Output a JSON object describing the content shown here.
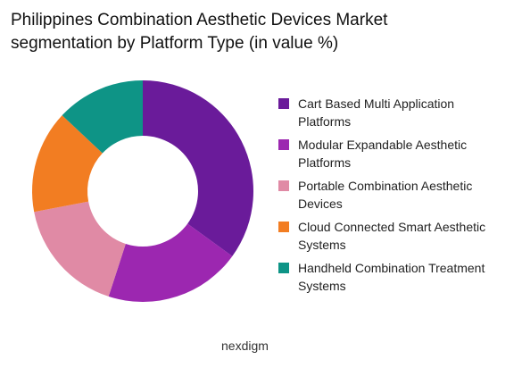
{
  "chart_data": {
    "type": "donut",
    "title": "Philippines Combination Aesthetic Devices Market segmentation by Platform Type (in value %)",
    "categories": [
      "Cart Based Multi Application Platforms",
      "Modular Expandable Aesthetic Platforms",
      "Portable Combination Aesthetic Devices",
      "Cloud Connected Smart Aesthetic Systems",
      "Handheld Combination Treatment Systems"
    ],
    "values": [
      35,
      20,
      17,
      15,
      13
    ],
    "colors": [
      "#6a1b9a",
      "#9c27b0",
      "#e08aa5",
      "#f27d22",
      "#0e9486"
    ],
    "legend": "right"
  },
  "brand": "nexdigm"
}
